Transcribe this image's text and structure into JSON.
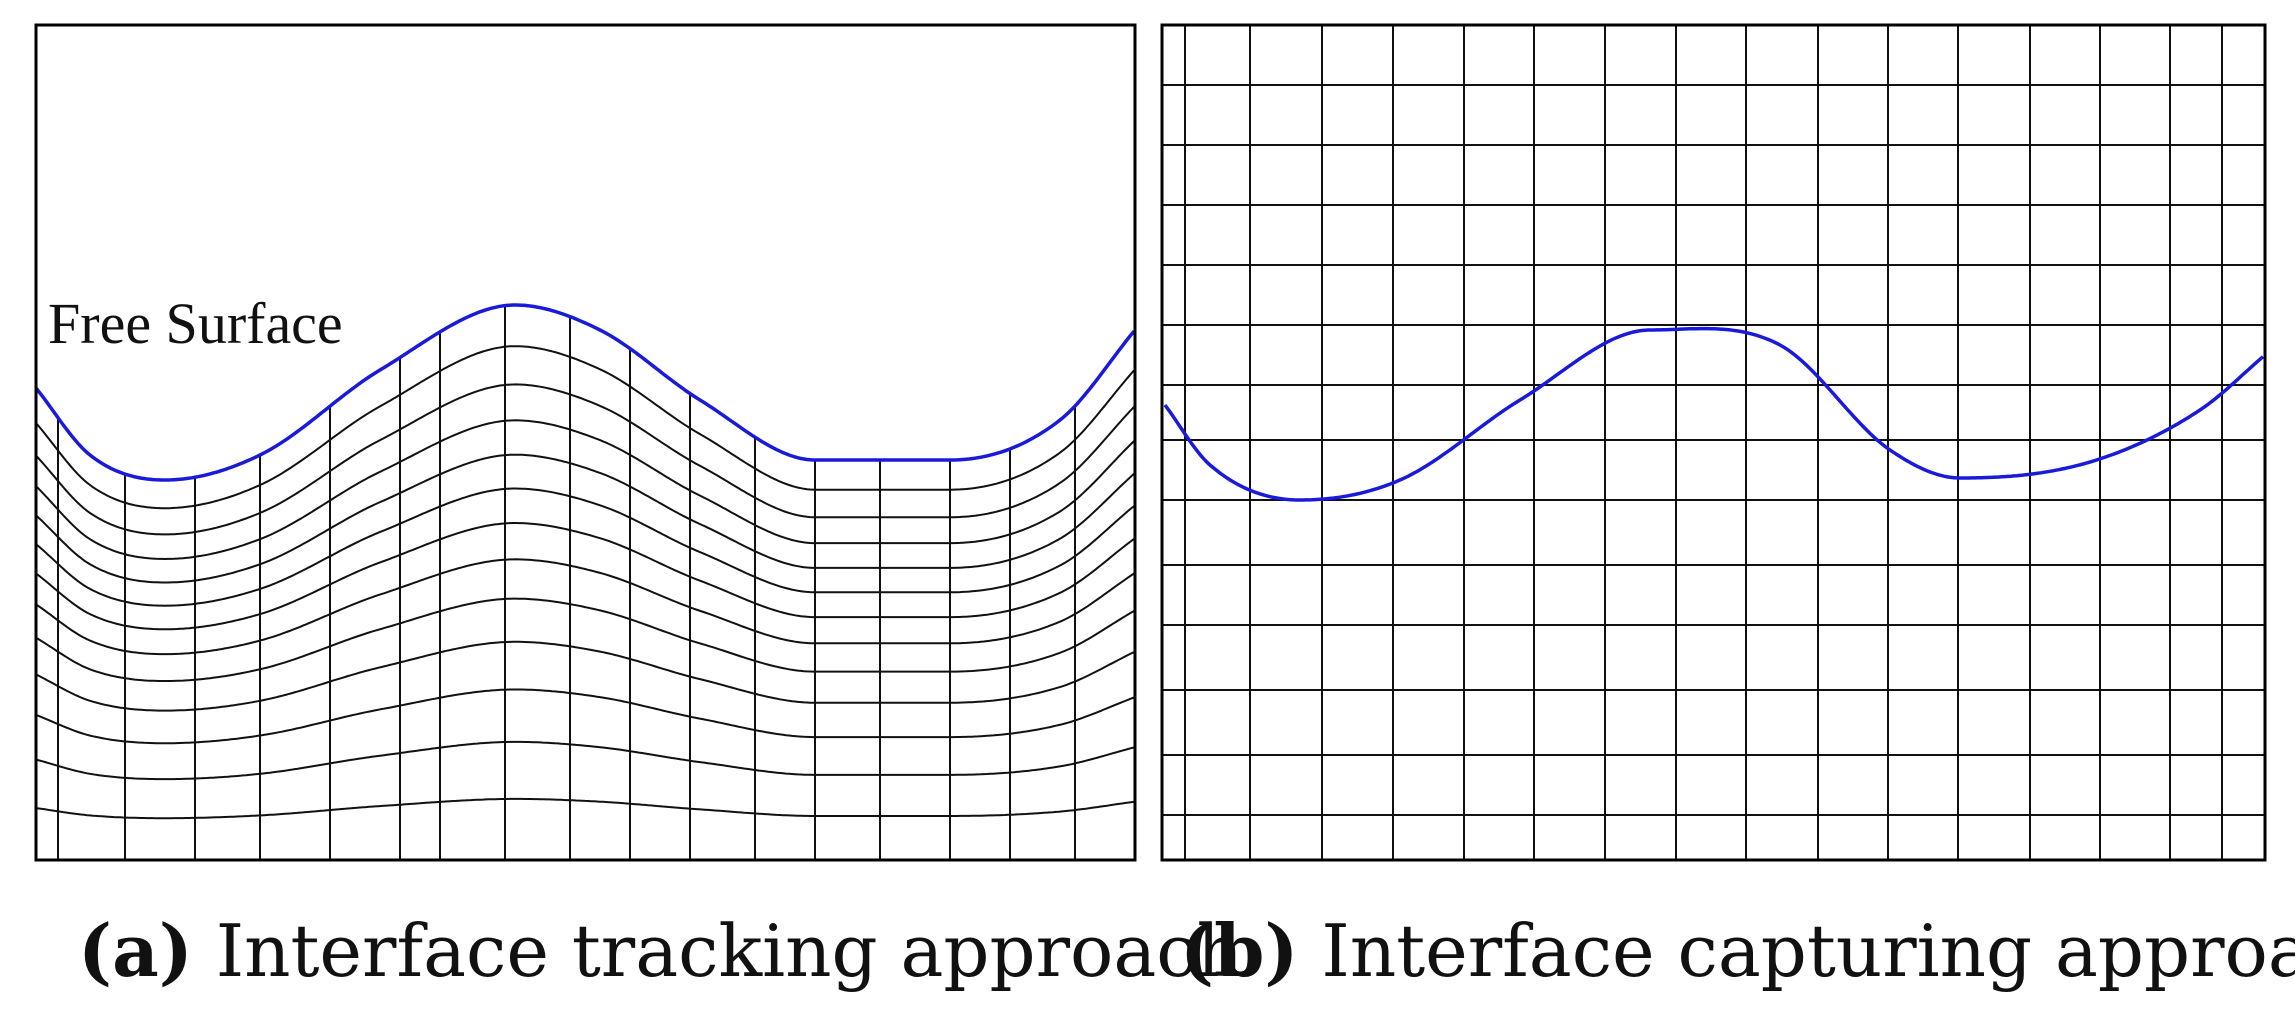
{
  "panels": [
    {
      "id": "a",
      "label": "(a)",
      "caption": "Interface tracking approach",
      "annotation": "Free Surface"
    },
    {
      "id": "b",
      "label": "(b)",
      "caption": "Interface capturing approach"
    }
  ],
  "colors": {
    "interface": "#1a1adb",
    "grid": "#111111",
    "frame": "#000000"
  }
}
